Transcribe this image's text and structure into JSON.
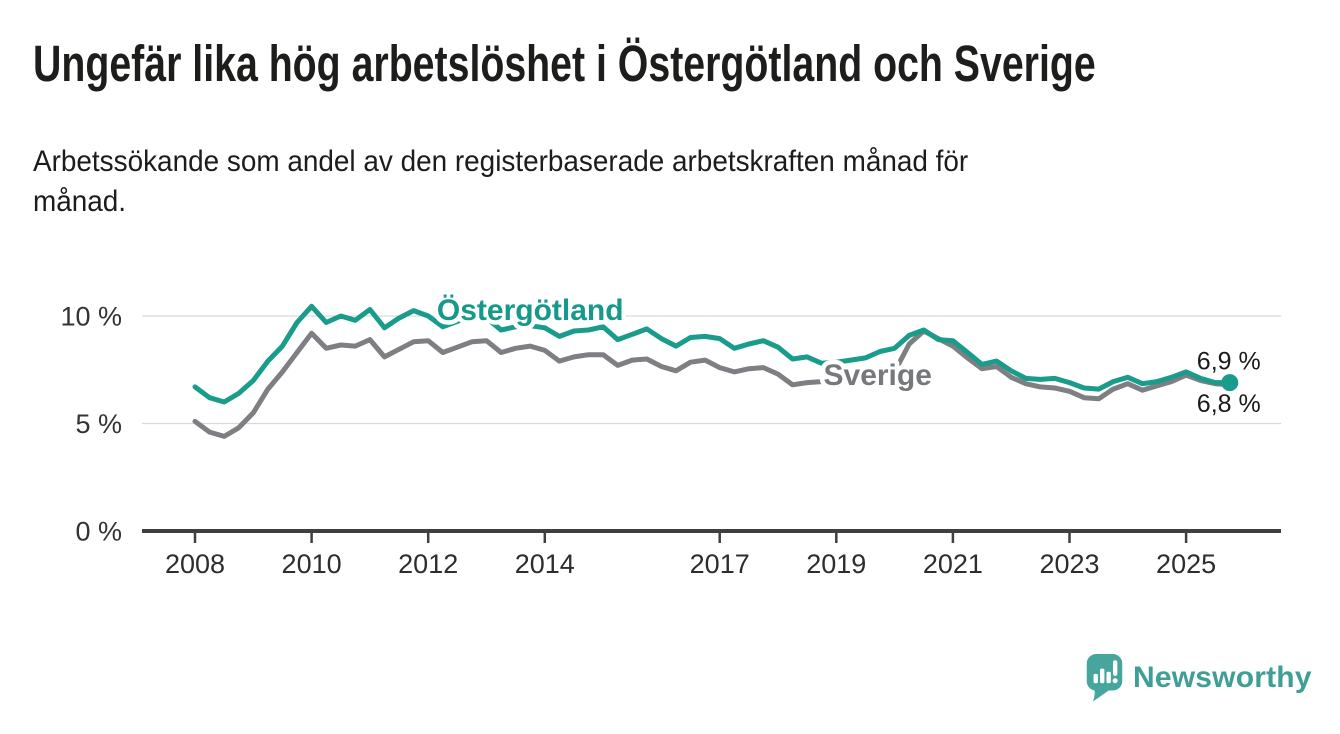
{
  "title": "Ungefär lika hög arbetslöshet i Östergötland och Sverige",
  "subtitle_lines": [
    "Arbetssökande som andel av den registerbaserade arbetskraften månad för",
    "månad."
  ],
  "branding": {
    "name": "Newsworthy",
    "logo_color": "#46a59c",
    "text_color": "#3f9f97"
  },
  "chart_data": {
    "type": "line",
    "unit": "%",
    "x_start": 2008.0,
    "x_step": 0.25,
    "x_end": 2025.75,
    "ylim": [
      0,
      11.5
    ],
    "grid": true,
    "grid_color": "#d9d9d9",
    "axis_color": "#3f3f3f",
    "tick_label_color": "#2d2d2d",
    "value_label_color": "#1a1a1a",
    "yticks": [
      {
        "value": 0,
        "label": "0 %"
      },
      {
        "value": 5,
        "label": "5 %"
      },
      {
        "value": 10,
        "label": "10 %"
      }
    ],
    "xticks": [
      {
        "value": 2008,
        "label": "2008"
      },
      {
        "value": 2010,
        "label": "2010"
      },
      {
        "value": 2012,
        "label": "2012"
      },
      {
        "value": 2014,
        "label": "2014"
      },
      {
        "value": 2017,
        "label": "2017"
      },
      {
        "value": 2019,
        "label": "2019"
      },
      {
        "value": 2021,
        "label": "2021"
      },
      {
        "value": 2023,
        "label": "2023"
      },
      {
        "value": 2025,
        "label": "2025"
      }
    ],
    "series": [
      {
        "key": "ostergotland",
        "name": "Östergötland",
        "color": "#1a9c8c",
        "label_color": "#16988a",
        "label_pos": {
          "x": 2012.15,
          "v": 9.82
        },
        "end_label": "6,9 %",
        "end_label_dy": -13,
        "dot_r": 8.5,
        "values": [
          6.7,
          6.2,
          6.0,
          6.4,
          7.0,
          7.9,
          8.6,
          9.7,
          10.45,
          9.7,
          10.0,
          9.8,
          10.3,
          9.45,
          9.9,
          10.25,
          10.0,
          9.5,
          9.75,
          10.0,
          9.9,
          9.35,
          9.5,
          9.55,
          9.45,
          9.05,
          9.3,
          9.35,
          9.5,
          8.9,
          9.15,
          9.4,
          8.95,
          8.6,
          9.0,
          9.05,
          8.95,
          8.5,
          8.7,
          8.85,
          8.55,
          8.0,
          8.1,
          7.8,
          7.85,
          7.95,
          8.05,
          8.35,
          8.5,
          9.1,
          9.35,
          8.9,
          8.85,
          8.3,
          7.75,
          7.9,
          7.45,
          7.1,
          7.05,
          7.1,
          6.9,
          6.65,
          6.6,
          6.95,
          7.15,
          6.85,
          6.95,
          7.15,
          7.4,
          7.1,
          6.9,
          6.9
        ]
      },
      {
        "key": "sverige",
        "name": "Sverige",
        "color": "#7e7f82",
        "label_color": "#77787b",
        "label_pos": {
          "x": 2018.78,
          "v": 6.79
        },
        "end_label": "6,8 %",
        "end_label_dy": 27,
        "dot_r": 5.5,
        "values": [
          5.1,
          4.6,
          4.4,
          4.8,
          5.5,
          6.6,
          7.4,
          8.3,
          9.2,
          8.5,
          8.65,
          8.6,
          8.9,
          8.1,
          8.45,
          8.8,
          8.85,
          8.3,
          8.55,
          8.8,
          8.85,
          8.3,
          8.5,
          8.6,
          8.4,
          7.9,
          8.1,
          8.2,
          8.2,
          7.7,
          7.95,
          8.0,
          7.65,
          7.45,
          7.85,
          7.95,
          7.6,
          7.4,
          7.55,
          7.6,
          7.3,
          6.8,
          6.9,
          6.95,
          6.9,
          7.0,
          7.1,
          7.3,
          7.4,
          8.7,
          9.3,
          8.95,
          8.6,
          8.05,
          7.55,
          7.65,
          7.15,
          6.85,
          6.7,
          6.65,
          6.5,
          6.2,
          6.15,
          6.6,
          6.85,
          6.55,
          6.75,
          6.95,
          7.25,
          7.0,
          6.85,
          6.8
        ]
      }
    ]
  }
}
